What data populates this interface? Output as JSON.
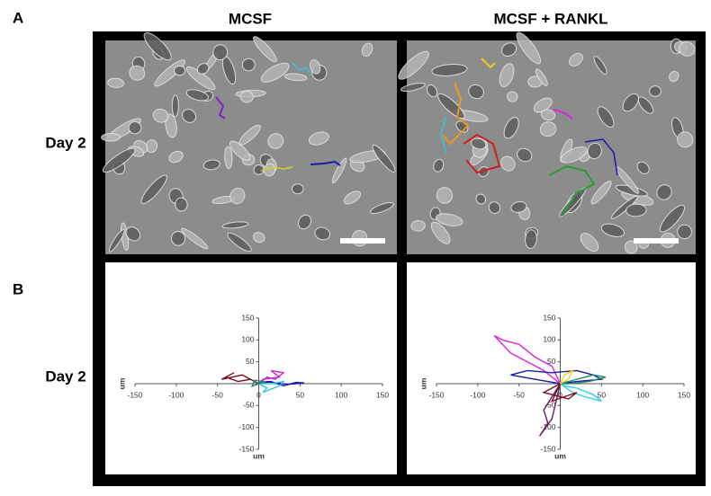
{
  "panel_labels": [
    "A",
    "B"
  ],
  "columns": [
    "MCSF",
    "MCSF + RANKL"
  ],
  "rows": [
    "Day 2",
    "Day 2"
  ],
  "chart_data": [
    {
      "type": "line",
      "xlabel": "um",
      "ylabel": "um",
      "xlim": [
        -150,
        150
      ],
      "ylim": [
        -150,
        150
      ],
      "xticks": [
        -150,
        -100,
        -50,
        0,
        50,
        100,
        150
      ],
      "yticks": [
        -150,
        -100,
        -50,
        50,
        100,
        150
      ],
      "series": [
        {
          "color": "#7a1020",
          "x": [
            0,
            -10,
            -25,
            -40,
            -30,
            -45,
            -20,
            -5,
            0
          ],
          "y": [
            0,
            10,
            5,
            15,
            25,
            10,
            20,
            5,
            0
          ]
        },
        {
          "color": "#cc22cc",
          "x": [
            0,
            10,
            20,
            30,
            15,
            25,
            5,
            0
          ],
          "y": [
            0,
            15,
            10,
            25,
            30,
            15,
            10,
            0
          ]
        },
        {
          "color": "#1a1aa8",
          "x": [
            0,
            15,
            30,
            45,
            55,
            35,
            10,
            0
          ],
          "y": [
            0,
            5,
            -5,
            3,
            2,
            -2,
            5,
            0
          ]
        },
        {
          "color": "#33c6e0",
          "x": [
            0,
            10,
            5,
            25,
            30,
            15,
            0
          ],
          "y": [
            0,
            -10,
            -20,
            -5,
            5,
            0,
            0
          ]
        },
        {
          "color": "#1a8a6a",
          "x": [
            0,
            -8,
            -5,
            8,
            0
          ],
          "y": [
            0,
            -6,
            8,
            4,
            0
          ]
        }
      ]
    },
    {
      "type": "line",
      "xlabel": "um",
      "ylabel": "um",
      "xlim": [
        -150,
        150
      ],
      "ylim": [
        -150,
        150
      ],
      "xticks": [
        -150,
        -100,
        -50,
        0,
        50,
        100,
        150
      ],
      "yticks": [
        -150,
        -100,
        -50,
        50,
        100,
        150
      ],
      "series": [
        {
          "color": "#dd22dd",
          "x": [
            0,
            -20,
            -40,
            -60,
            -80,
            -70,
            -50,
            -30,
            -10,
            0
          ],
          "y": [
            0,
            30,
            50,
            70,
            110,
            100,
            90,
            60,
            40,
            0
          ]
        },
        {
          "color": "#1a1aa8",
          "x": [
            0,
            -30,
            -60,
            -40,
            -10,
            20,
            40,
            50,
            20,
            0
          ],
          "y": [
            0,
            10,
            20,
            30,
            25,
            30,
            20,
            10,
            5,
            0
          ]
        },
        {
          "color": "#33d0e8",
          "x": [
            0,
            15,
            30,
            50,
            40,
            20,
            5,
            0
          ],
          "y": [
            0,
            -20,
            -30,
            -40,
            -25,
            -10,
            -5,
            0
          ]
        },
        {
          "color": "#6a1a6a",
          "x": [
            0,
            -10,
            -20,
            -15,
            -25,
            -10,
            0
          ],
          "y": [
            0,
            -30,
            -60,
            -90,
            -120,
            -80,
            0
          ]
        },
        {
          "color": "#7a1020",
          "x": [
            0,
            -20,
            10,
            20,
            -10,
            0
          ],
          "y": [
            0,
            -20,
            -35,
            -20,
            -40,
            0
          ]
        },
        {
          "color": "#1a8a6a",
          "x": [
            0,
            20,
            40,
            55,
            35,
            10,
            0
          ],
          "y": [
            0,
            10,
            20,
            15,
            5,
            0,
            0
          ]
        },
        {
          "color": "#e8d020",
          "x": [
            0,
            5,
            15,
            10,
            0
          ],
          "y": [
            0,
            20,
            30,
            10,
            0
          ]
        }
      ]
    }
  ]
}
